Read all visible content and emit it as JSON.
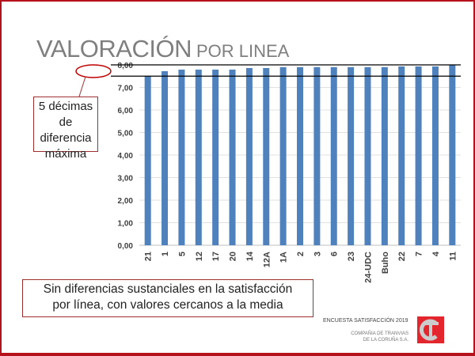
{
  "title": {
    "main": "VALORACIÓN",
    "sub": "POR LINEA"
  },
  "callout": {
    "line1": "5 décimas",
    "line2": "de diferencia",
    "line3": "máxima"
  },
  "note": {
    "line1": "Sin diferencias sustanciales  en la satisfacción",
    "line2": "por línea, con valores  cercanos a la media"
  },
  "footer": {
    "survey": "ENCUESTA SATISFACCIÓN 2019",
    "company_line1": "COMPAÑIA DE TRANVIAS",
    "company_line2": "DE LA CORUÑA S.A.",
    "logo_text": "TC"
  },
  "colors": {
    "bar": "#4f81bd",
    "border": "#b5121b",
    "logo": "#e3262e"
  },
  "chart_data": {
    "type": "bar",
    "title": "VALORACIÓN POR LINEA",
    "categories": [
      "21",
      "1",
      "5",
      "12",
      "17",
      "20",
      "14",
      "12A",
      "1A",
      "2",
      "3",
      "6",
      "23",
      "24-UDC",
      "Buho",
      "22",
      "7",
      "4",
      "11"
    ],
    "values": [
      7.51,
      7.72,
      7.79,
      7.79,
      7.79,
      7.79,
      7.86,
      7.86,
      7.9,
      7.9,
      7.9,
      7.9,
      7.9,
      7.9,
      7.9,
      7.93,
      7.93,
      7.93,
      8.01
    ],
    "ylim": [
      0,
      8
    ],
    "yticks": [
      "0,00",
      "1,00",
      "2,00",
      "3,00",
      "4,00",
      "5,00",
      "6,00",
      "7,00",
      "8,00"
    ],
    "reference_lines": [
      7.5,
      8.0
    ],
    "grid": true,
    "xlabel": "",
    "ylabel": ""
  }
}
